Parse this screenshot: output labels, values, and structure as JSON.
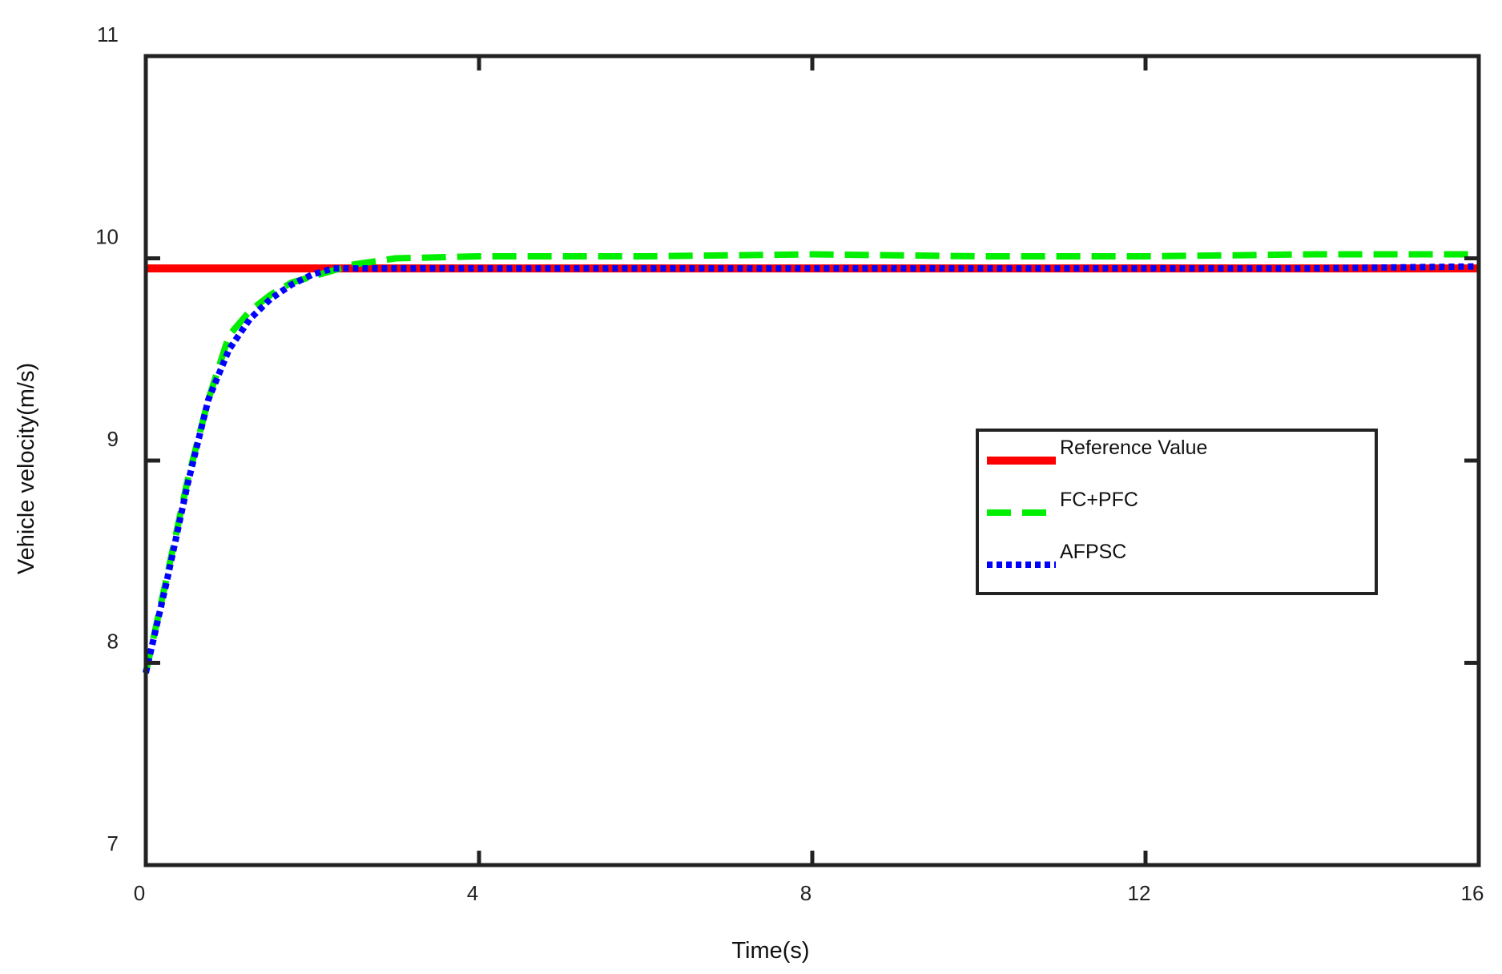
{
  "chart_data": {
    "type": "line",
    "xlabel": "Time(s)",
    "ylabel": "Vehicle velocity(m/s)",
    "xlim": [
      0,
      16
    ],
    "ylim": [
      7,
      11
    ],
    "xticks": [
      0,
      4,
      8,
      12,
      16
    ],
    "yticks": [
      7,
      8,
      9,
      10,
      11
    ],
    "xtick_labels": [
      "0",
      "4",
      "8",
      "12",
      "16"
    ],
    "ytick_labels": [
      "7",
      "8",
      "9",
      "10",
      "11"
    ],
    "grid": false,
    "legend_position": "center-right",
    "series": [
      {
        "name": "Reference Value",
        "color": "#ff0000",
        "style": "solid",
        "x": [
          0,
          16
        ],
        "y": [
          9.95,
          9.95
        ]
      },
      {
        "name": "FC+PFC",
        "color": "#00ee00",
        "style": "dashed",
        "x": [
          0,
          0.25,
          0.5,
          0.75,
          1.0,
          1.25,
          1.5,
          1.75,
          2.0,
          2.25,
          2.5,
          3.0,
          4.0,
          6.0,
          8.0,
          10.0,
          12.0,
          14.0,
          16.0
        ],
        "y": [
          7.95,
          8.42,
          8.9,
          9.3,
          9.62,
          9.74,
          9.82,
          9.88,
          9.91,
          9.94,
          9.97,
          10.0,
          10.01,
          10.01,
          10.02,
          10.01,
          10.01,
          10.02,
          10.02
        ]
      },
      {
        "name": "AFPSC",
        "color": "#0000ff",
        "style": "dotted",
        "x": [
          0,
          0.25,
          0.5,
          0.75,
          1.0,
          1.25,
          1.5,
          1.75,
          2.0,
          2.25,
          2.5,
          3.0,
          4.0,
          6.0,
          8.0,
          10.0,
          12.0,
          14.0,
          16.0
        ],
        "y": [
          7.95,
          8.4,
          8.88,
          9.3,
          9.55,
          9.7,
          9.8,
          9.87,
          9.92,
          9.95,
          9.95,
          9.95,
          9.95,
          9.95,
          9.95,
          9.95,
          9.95,
          9.95,
          9.96
        ]
      }
    ]
  }
}
